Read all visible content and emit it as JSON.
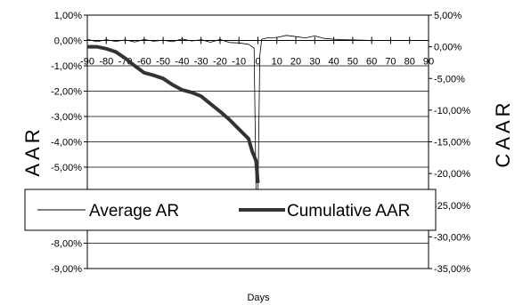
{
  "chart_data": {
    "type": "line",
    "title": "",
    "xlabel": "Days",
    "ylabel_left": "AAR",
    "ylabel_right": "CAAR",
    "x_range": [
      -90,
      90
    ],
    "x_ticks": [
      "-90",
      "-80",
      "-70",
      "-60",
      "-50",
      "-40",
      "-30",
      "-20",
      "-10",
      "0",
      "10",
      "20",
      "30",
      "40",
      "50",
      "60",
      "70",
      "80",
      "90"
    ],
    "ylim_left": [
      -0.09,
      0.01
    ],
    "ylim_right": [
      -0.35,
      0.05
    ],
    "y_left_ticks": [
      "1,00%",
      "0,00%",
      "-1,00%",
      "-2,00%",
      "-3,00%",
      "-4,00%",
      "-5,00%",
      "-6,00%",
      "-7,00%",
      "-8,00%",
      "-9,00%"
    ],
    "y_right_ticks": [
      "5,00%",
      "0,00%",
      "-5,00%",
      "-10,00%",
      "-15,00%",
      "-20,00%",
      "-25,00%",
      "-30,00%",
      "-35,00%"
    ],
    "grid": "horizontal",
    "legend_position": "center",
    "series": [
      {
        "name": "Average AR",
        "axis": "left",
        "color": "#000000",
        "points": [
          [
            -90,
            0.0005
          ],
          [
            -85,
            -0.0005
          ],
          [
            -80,
            0.0003
          ],
          [
            -75,
            -0.0004
          ],
          [
            -70,
            0.0002
          ],
          [
            -65,
            -0.0006
          ],
          [
            -60,
            0.0004
          ],
          [
            -55,
            -0.0003
          ],
          [
            -50,
            0.0001
          ],
          [
            -45,
            -0.0005
          ],
          [
            -40,
            0.0006
          ],
          [
            -35,
            -0.0002
          ],
          [
            -30,
            0.0003
          ],
          [
            -25,
            -0.0007
          ],
          [
            -20,
            0.0004
          ],
          [
            -15,
            -0.0008
          ],
          [
            -10,
            -0.001
          ],
          [
            -5,
            -0.0015
          ],
          [
            -2,
            -0.003
          ],
          [
            -1,
            -0.06
          ],
          [
            0,
            -0.062
          ],
          [
            1,
            -0.006
          ],
          [
            2,
            0.0005
          ],
          [
            5,
            0.001
          ],
          [
            10,
            0.0012
          ],
          [
            15,
            0.002
          ],
          [
            20,
            0.0015
          ],
          [
            25,
            0.001
          ],
          [
            30,
            0.0018
          ],
          [
            35,
            0.0008
          ],
          [
            40,
            0.0005
          ],
          [
            45,
            0.0003
          ],
          [
            50,
            0.0002
          ],
          [
            55,
            0.0001
          ],
          [
            60,
            0.0
          ]
        ]
      },
      {
        "name": "Cumulative AAR",
        "axis": "right",
        "color": "#333333",
        "points": [
          [
            -90,
            0.0
          ],
          [
            -85,
            0.0
          ],
          [
            -80,
            -0.003
          ],
          [
            -75,
            -0.008
          ],
          [
            -70,
            -0.018
          ],
          [
            -65,
            -0.03
          ],
          [
            -60,
            -0.041
          ],
          [
            -55,
            -0.045
          ],
          [
            -50,
            -0.05
          ],
          [
            -45,
            -0.06
          ],
          [
            -40,
            -0.068
          ],
          [
            -35,
            -0.072
          ],
          [
            -30,
            -0.078
          ],
          [
            -25,
            -0.09
          ],
          [
            -20,
            -0.102
          ],
          [
            -15,
            -0.115
          ],
          [
            -10,
            -0.13
          ],
          [
            -5,
            -0.145
          ],
          [
            -3,
            -0.165
          ],
          [
            -1,
            -0.18
          ],
          [
            0,
            -0.215
          ]
        ]
      }
    ]
  }
}
